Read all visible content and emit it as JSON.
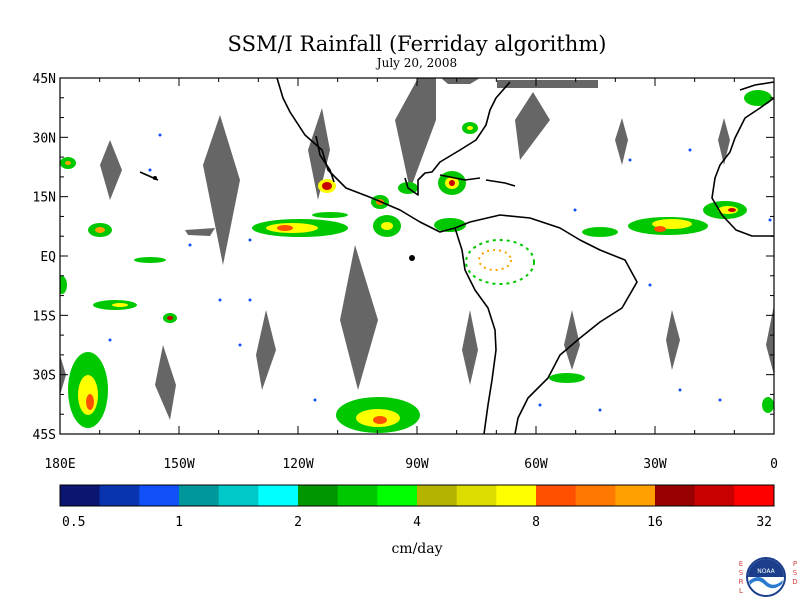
{
  "header": {
    "title": "SSM/I Rainfall (Ferriday algorithm)",
    "date": "July 20, 2008"
  },
  "axes": {
    "lat_labels": [
      "45N",
      "30N",
      "15N",
      "EQ",
      "15S",
      "30S",
      "45S"
    ],
    "lon_labels": [
      "180E",
      "150W",
      "120W",
      "90W",
      "60W",
      "30W",
      "0"
    ],
    "lat_values": [
      45,
      30,
      15,
      0,
      -15,
      -30,
      -45
    ],
    "lon_values": [
      -180,
      -150,
      -120,
      -90,
      -60,
      -30,
      0
    ]
  },
  "map_extent": {
    "lon_min": -180,
    "lon_max": 0,
    "lat_min": -45,
    "lat_max": 45
  },
  "colorbar": {
    "colors": [
      "#0a1670",
      "#0a33b0",
      "#1050f8",
      "#00969a",
      "#00c8c8",
      "#00ffff",
      "#009600",
      "#00c800",
      "#00ff00",
      "#b4b400",
      "#dcdc00",
      "#ffff00",
      "#ff5000",
      "#ff7800",
      "#ffa000",
      "#960000",
      "#c80000",
      "#ff0000"
    ],
    "labels": [
      "0.5",
      "1",
      "2",
      "4",
      "8",
      "16",
      "32"
    ],
    "units": "cm/day"
  },
  "logo": {
    "name": "NOAA",
    "left_letters": [
      "E",
      "S",
      "R",
      "L"
    ],
    "right_letters": [
      "P",
      "S",
      "D"
    ]
  }
}
